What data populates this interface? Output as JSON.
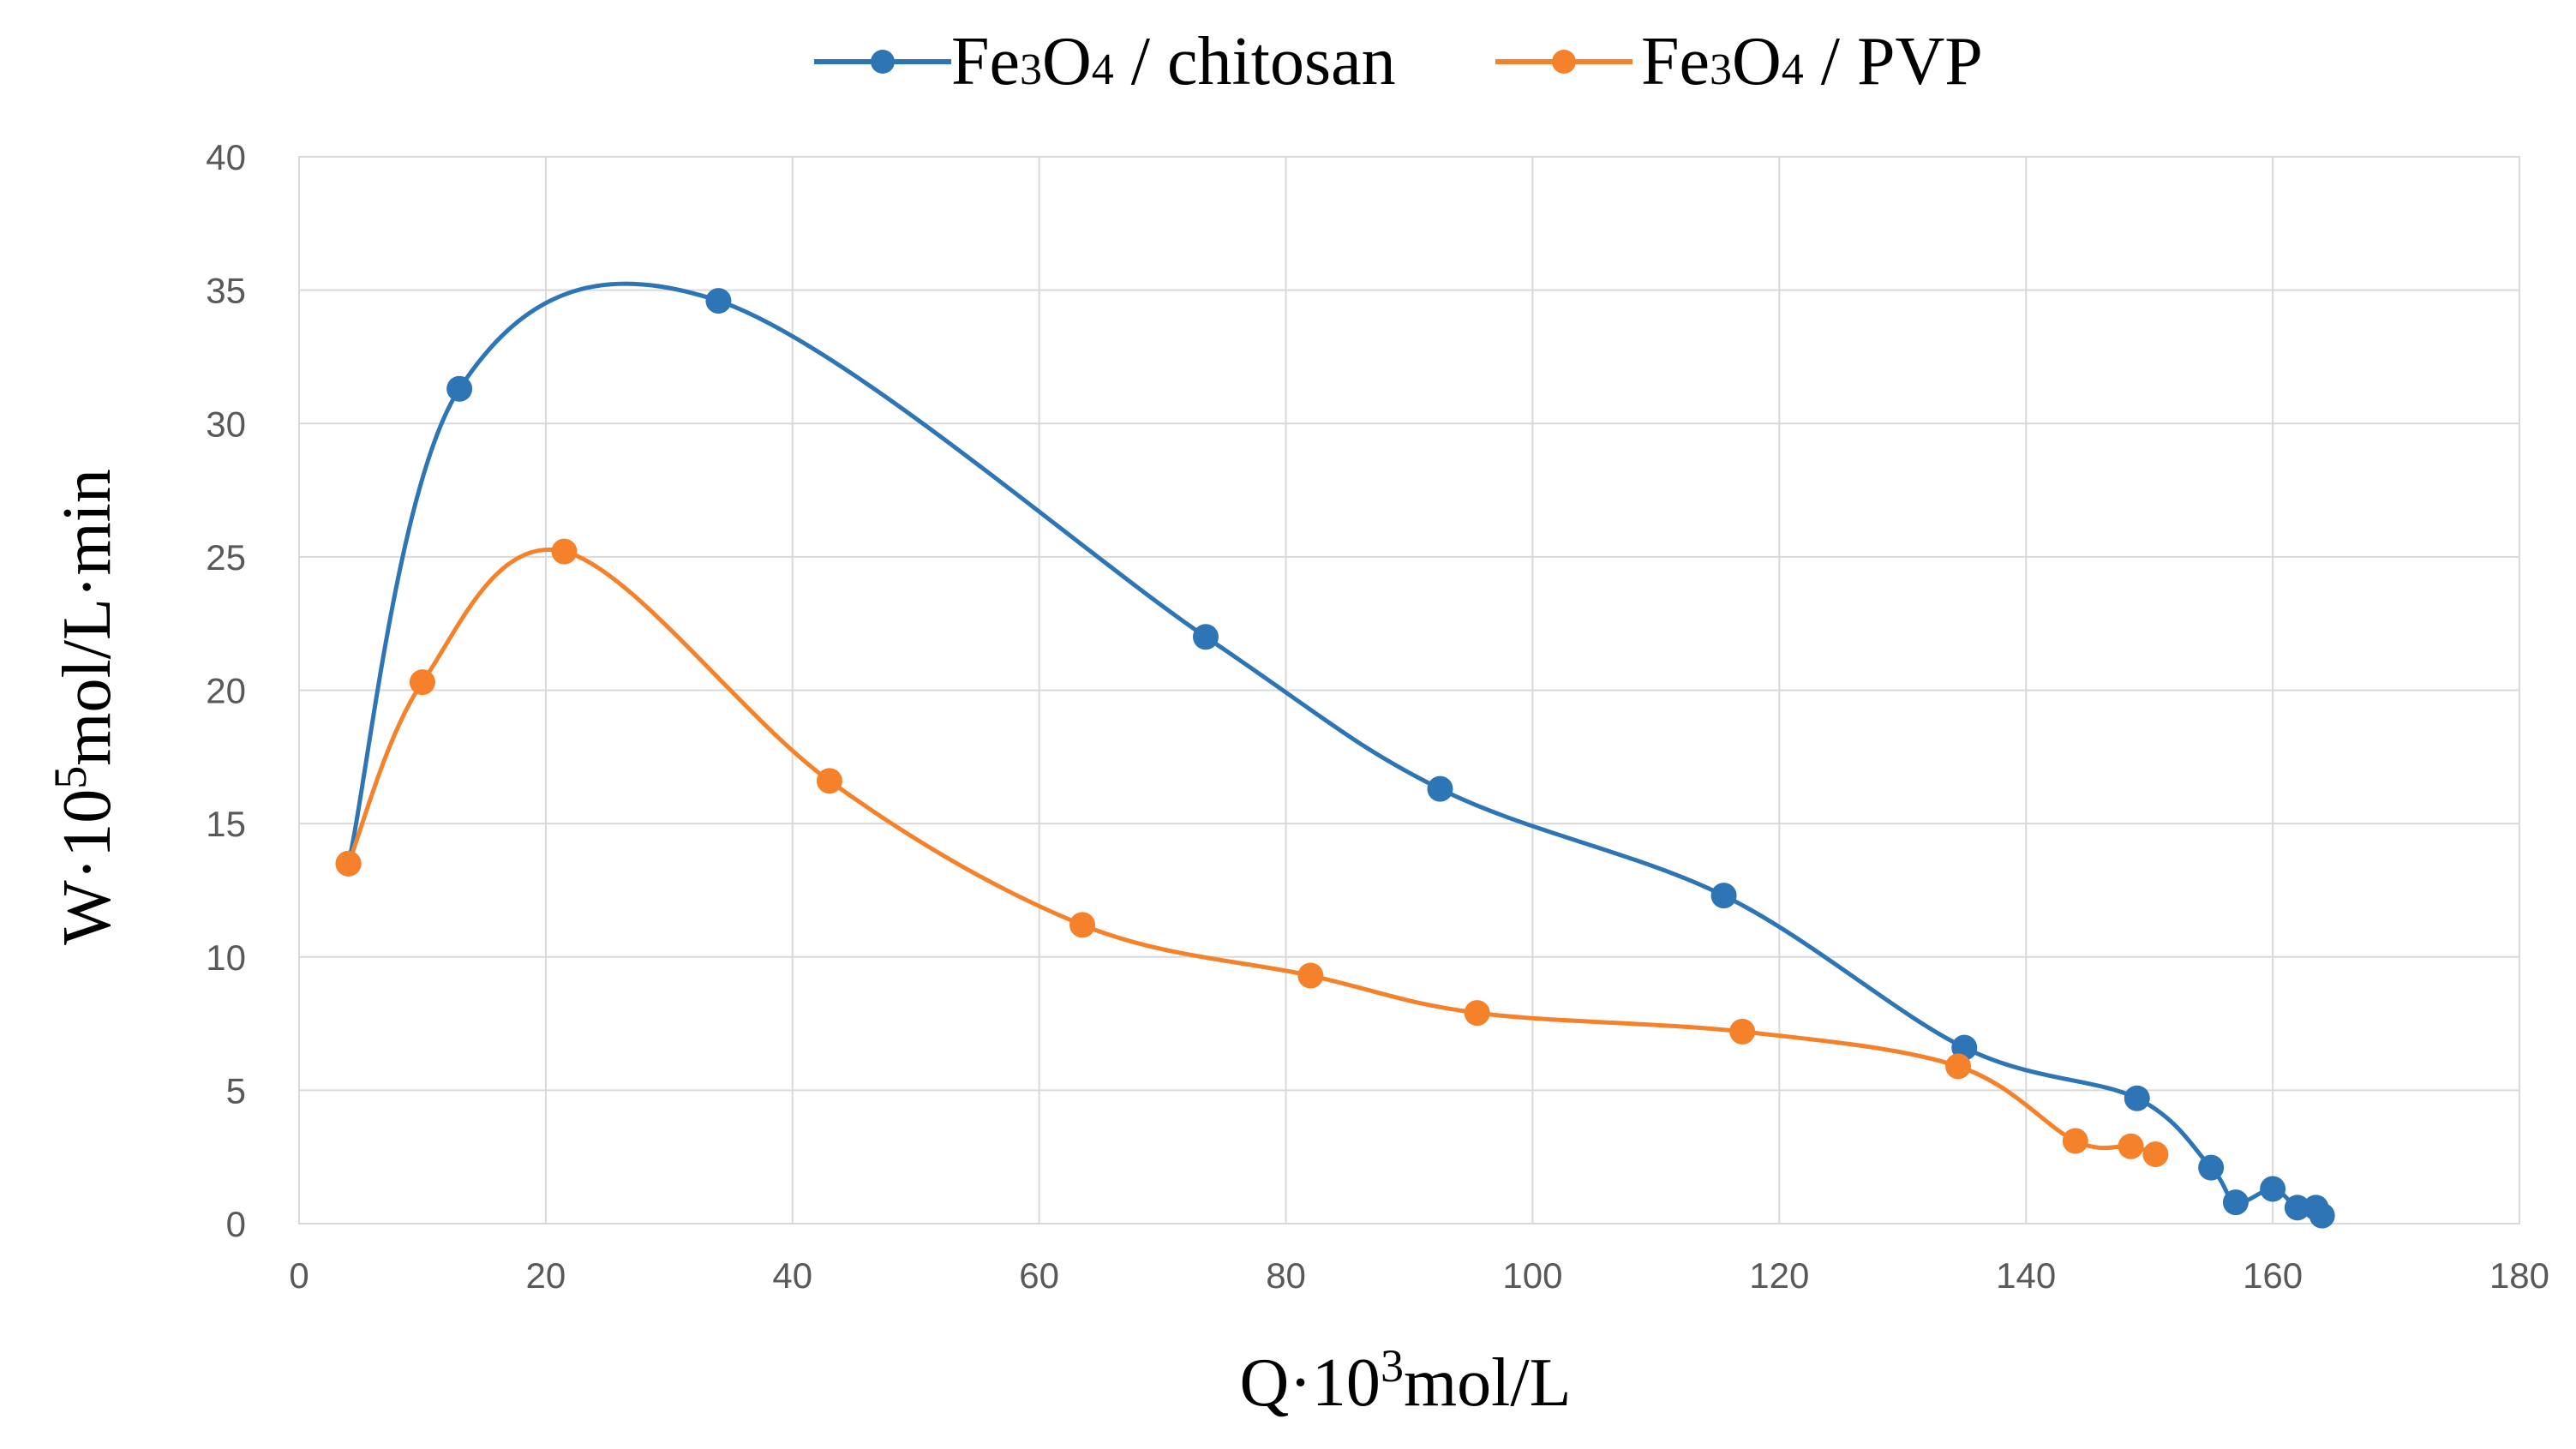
{
  "chart_data": {
    "type": "line",
    "title": "",
    "xlabel": {
      "text": "Q·10",
      "sup": "3",
      "tail": "mol/L"
    },
    "ylabel": {
      "text": "W·10",
      "sup": "5",
      "tail": "mol/L·min"
    },
    "xlim": [
      0,
      180
    ],
    "ylim": [
      0,
      40
    ],
    "xticks": [
      0,
      20,
      40,
      60,
      80,
      100,
      120,
      140,
      160,
      180
    ],
    "yticks": [
      0,
      5,
      10,
      15,
      20,
      25,
      30,
      35,
      40
    ],
    "grid": true,
    "legend_position": "top",
    "smooth": true,
    "series": [
      {
        "name": "Fe3O4 / chitosan",
        "legend": {
          "a": "Fe",
          "s1": "3",
          "b": "O",
          "s2": "4",
          "c": " / chitosan"
        },
        "color": "#2E75B6",
        "points": [
          [
            4,
            13.5
          ],
          [
            13,
            31.3
          ],
          [
            34,
            34.6
          ],
          [
            73.5,
            22.0
          ],
          [
            92.5,
            16.3
          ],
          [
            115.5,
            12.3
          ],
          [
            135,
            6.6
          ],
          [
            149,
            4.7
          ],
          [
            155,
            2.1
          ],
          [
            157,
            0.8
          ],
          [
            160,
            1.3
          ],
          [
            162,
            0.6
          ],
          [
            163.5,
            0.6
          ],
          [
            164,
            0.3
          ]
        ]
      },
      {
        "name": "Fe3O4 / PVP",
        "legend": {
          "a": "Fe",
          "s1": "3",
          "b": "O",
          "s2": "4",
          "c": " / PVP"
        },
        "color": "#F5822A",
        "points": [
          [
            4,
            13.5
          ],
          [
            10,
            20.3
          ],
          [
            21.5,
            25.2
          ],
          [
            43,
            16.6
          ],
          [
            63.5,
            11.2
          ],
          [
            82,
            9.3
          ],
          [
            95.5,
            7.9
          ],
          [
            117,
            7.2
          ],
          [
            134.5,
            5.9
          ],
          [
            144,
            3.1
          ],
          [
            148.5,
            2.9
          ],
          [
            150.5,
            2.6
          ]
        ]
      }
    ]
  }
}
